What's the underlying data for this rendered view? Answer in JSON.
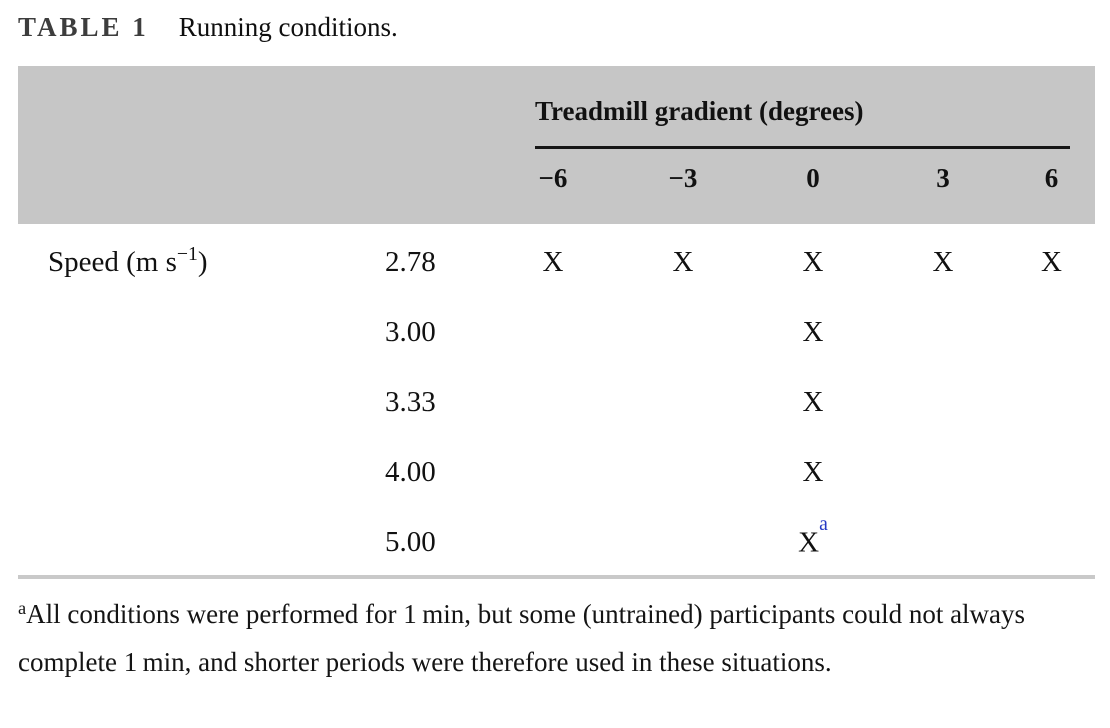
{
  "title": {
    "label": "TABLE 1",
    "caption": "Running conditions."
  },
  "table": {
    "group_header": "Treadmill gradient (degrees)",
    "gradient_columns": [
      "−6",
      "−3",
      "0",
      "3",
      "6"
    ],
    "row_header": {
      "prefix": "Speed (m s",
      "superscript": "−1",
      "suffix": ")"
    },
    "rows": [
      {
        "speed": "2.78",
        "marks": [
          "X",
          "X",
          "X",
          "X",
          "X"
        ]
      },
      {
        "speed": "3.00",
        "marks": [
          "",
          "",
          "X",
          "",
          ""
        ]
      },
      {
        "speed": "3.33",
        "marks": [
          "",
          "",
          "X",
          "",
          ""
        ]
      },
      {
        "speed": "4.00",
        "marks": [
          "",
          "",
          "X",
          "",
          ""
        ]
      },
      {
        "speed": "5.00",
        "marks": [
          "",
          "",
          "X",
          "",
          ""
        ]
      }
    ],
    "footnote_marker": "a"
  },
  "footnote": {
    "marker": "a",
    "text": "All conditions were performed for 1 min, but some (untrained) participants could not always complete 1 min, and shorter periods were therefore used in these situations."
  },
  "colors": {
    "header_bg": "#c6c6c6",
    "group_rule": "#161616",
    "bottom_rule": "#c9c9c9",
    "footnote_marker_blue": "#2539c4",
    "title_label_gray": "#3d3d3d"
  }
}
